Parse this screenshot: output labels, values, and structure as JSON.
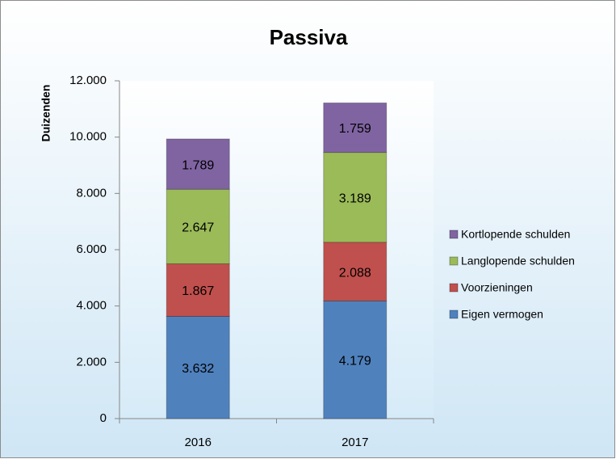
{
  "chart_data": {
    "type": "stacked-bar",
    "title": "Passiva",
    "y_label": "Duizenden",
    "categories": [
      "2016",
      "2017"
    ],
    "series": [
      {
        "name": "Eigen vermogen",
        "color": "#4f81bd",
        "values": [
          3632,
          4179
        ],
        "value_labels": [
          "3.632",
          "4.179"
        ]
      },
      {
        "name": "Voorzieningen",
        "color": "#c0504d",
        "values": [
          1867,
          2088
        ],
        "value_labels": [
          "1.867",
          "2.088"
        ]
      },
      {
        "name": "Langlopende schulden",
        "color": "#9bbb59",
        "values": [
          2647,
          3189
        ],
        "value_labels": [
          "2.647",
          "3.189"
        ]
      },
      {
        "name": "Kortlopende schulden",
        "color": "#8064a2",
        "values": [
          1789,
          1759
        ],
        "value_labels": [
          "1.789",
          "1.759"
        ]
      }
    ],
    "ylim": [
      0,
      12000
    ],
    "yticks": [
      0,
      {
        "value": 2000,
        "label": "2.000"
      },
      {
        "value": 4000,
        "label": "4.000"
      },
      {
        "value": 6000,
        "label": "6.000"
      },
      {
        "value": 8000,
        "label": "8.000"
      },
      {
        "value": 10000,
        "label": "10.000"
      },
      {
        "value": 12000,
        "label": "12.000"
      }
    ],
    "legend": "right"
  }
}
